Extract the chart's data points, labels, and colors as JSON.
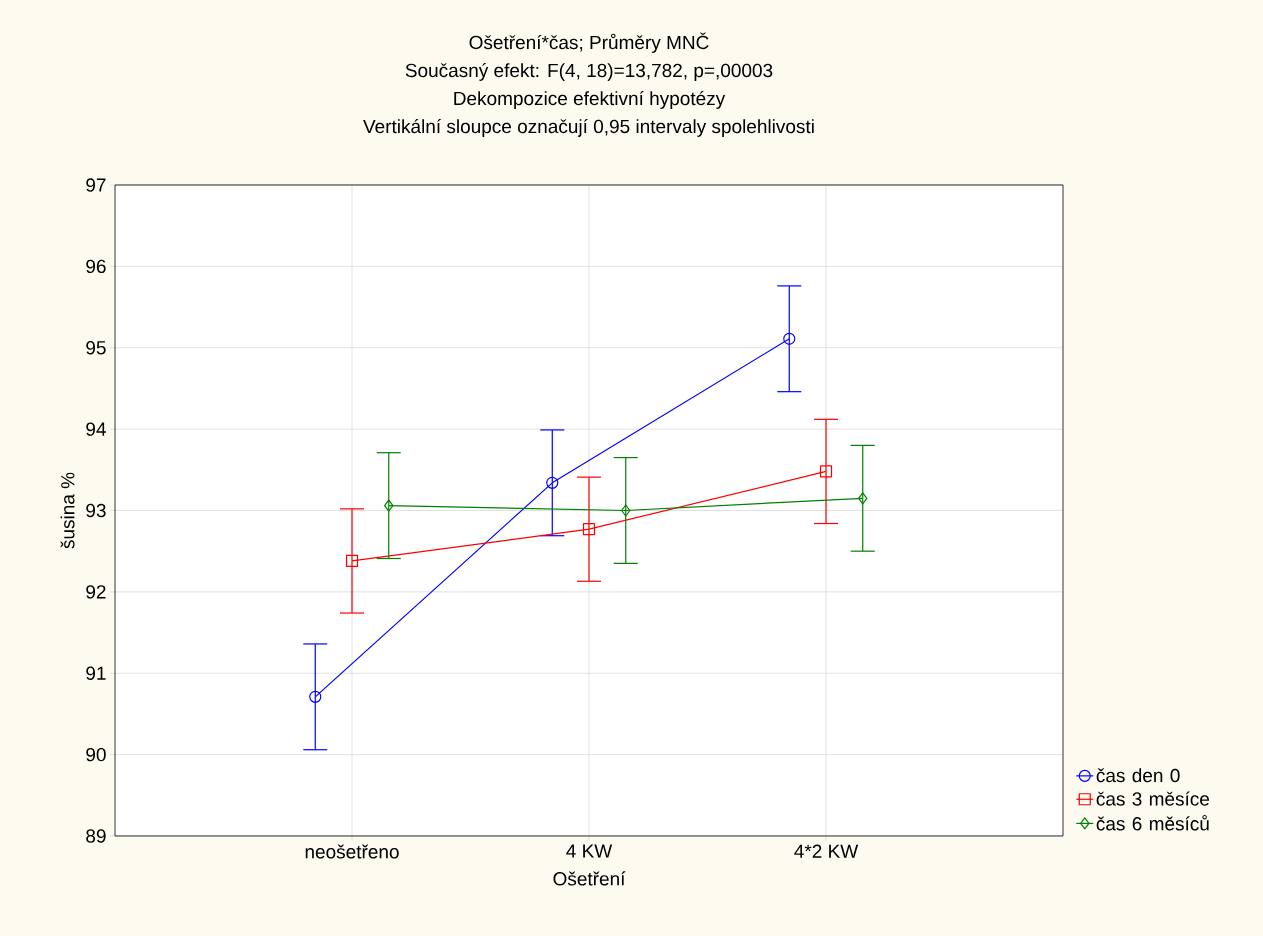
{
  "chart_data": {
    "type": "line",
    "title": "Ošetření*čas; Průměry MNČ",
    "subtitle": "Současný efekt: F(4, 18)=13,782, p=,00003",
    "annotations": [
      "Dekompozice efektivní hypotézy",
      "Vertikální sloupce označují 0,95 intervaly spolehlivosti"
    ],
    "xlabel": "Ošetření",
    "ylabel": "šusina %",
    "categories": [
      "neošetřeno",
      "4 KW",
      "4*2 KW"
    ],
    "series": [
      {
        "name": "čas den 0",
        "color": "#0000ff",
        "marker": "circle",
        "values": [
          90.71,
          93.34,
          95.11
        ],
        "errors": [
          0.65,
          0.65,
          0.65
        ]
      },
      {
        "name": "čas 3 měsíce",
        "color": "#ff0000",
        "marker": "square",
        "values": [
          92.38,
          92.77,
          93.48
        ],
        "errors": [
          0.64,
          0.64,
          0.64
        ]
      },
      {
        "name": "čas 6 měsíců",
        "color": "#008000",
        "marker": "diamond",
        "values": [
          93.06,
          93.0,
          93.15
        ],
        "errors": [
          0.65,
          0.65,
          0.65
        ]
      }
    ],
    "ylim": [
      89,
      97
    ],
    "yticks": [
      89,
      90,
      91,
      92,
      93,
      94,
      95,
      96,
      97
    ],
    "grid": true,
    "legend": "bottom right",
    "line_style": "solid"
  }
}
